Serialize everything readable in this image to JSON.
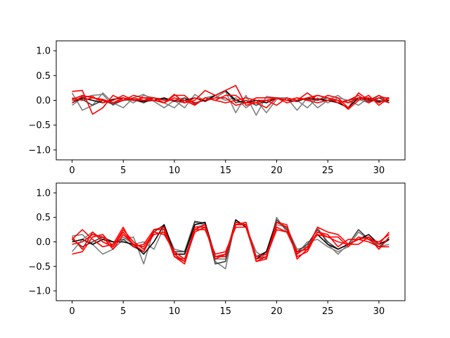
{
  "figure": {
    "background": "#ffffff"
  },
  "chart_data": [
    {
      "type": "line",
      "title": "",
      "xlabel": "",
      "ylabel": "",
      "xlim": [
        -1.55,
        32.55
      ],
      "ylim": [
        -1.2,
        1.2
      ],
      "x_ticks": [
        0,
        5,
        10,
        15,
        20,
        25,
        30
      ],
      "y_ticks": [
        -1.0,
        -0.5,
        0.0,
        0.5,
        1.0
      ],
      "x_tick_labels": [
        "0",
        "5",
        "10",
        "15",
        "20",
        "25",
        "30"
      ],
      "y_tick_labels": [
        "−1.0",
        "−0.5",
        "0.0",
        "0.5",
        "1.0"
      ],
      "grid": false,
      "legend": "none",
      "x": [
        0,
        1,
        2,
        3,
        4,
        5,
        6,
        7,
        8,
        9,
        10,
        11,
        12,
        13,
        14,
        15,
        16,
        17,
        18,
        19,
        20,
        21,
        22,
        23,
        24,
        25,
        26,
        27,
        28,
        29,
        30,
        31
      ],
      "series": [
        {
          "color": "#808080",
          "values": [
            0.15,
            -0.2,
            -0.1,
            0.15,
            -0.05,
            -0.15,
            0.05,
            0.12,
            -0.02,
            -0.15,
            0.0,
            -0.15,
            0.12,
            -0.02,
            0.05,
            0.18,
            -0.25,
            0.1,
            -0.3,
            0.08,
            0.05,
            0.05,
            -0.2,
            0.05,
            -0.15,
            0.0,
            0.1,
            -0.05,
            0.02,
            -0.05,
            0.1,
            0.02
          ]
        },
        {
          "color": "#808080",
          "values": [
            -0.1,
            0.05,
            0.1,
            0.12,
            -0.1,
            0.05,
            -0.05,
            0.1,
            0.05,
            -0.05,
            -0.15,
            0.05,
            -0.1,
            0.05,
            0.1,
            0.0,
            0.05,
            -0.15,
            0.0,
            -0.25,
            0.02,
            0.05,
            0.0,
            -0.15,
            0.05,
            -0.05,
            0.05,
            0.0,
            -0.1,
            0.05,
            0.0,
            -0.05
          ]
        },
        {
          "color": "#404040",
          "values": [
            0.0,
            0.02,
            -0.1,
            0.0,
            -0.08,
            0.0,
            0.02,
            -0.05,
            0.05,
            0.02,
            0.0,
            0.05,
            -0.05,
            0.0,
            0.1,
            0.2,
            -0.05,
            0.0,
            -0.1,
            0.0,
            0.05,
            0.0,
            0.05,
            0.02,
            0.0,
            0.05,
            -0.05,
            0.0,
            0.05,
            -0.02,
            0.05,
            -0.05
          ]
        },
        {
          "color": "#000000",
          "values": [
            -0.05,
            0.05,
            0.0,
            -0.05,
            0.02,
            0.05,
            0.0,
            -0.02,
            0.0,
            0.05,
            -0.02,
            0.0,
            0.05,
            -0.02,
            0.1,
            0.2,
            0.0,
            -0.05,
            0.0,
            -0.05,
            0.05,
            0.0,
            -0.02,
            0.05,
            0.02,
            0.0,
            -0.05,
            -0.15,
            0.05,
            0.02,
            -0.02,
            0.0
          ]
        },
        {
          "color": "#ff0000",
          "values": [
            0.18,
            0.2,
            -0.28,
            -0.15,
            0.1,
            0.0,
            0.05,
            0.0,
            0.05,
            -0.05,
            0.12,
            -0.05,
            0.0,
            0.2,
            0.1,
            0.2,
            0.3,
            -0.1,
            -0.05,
            -0.15,
            0.05,
            -0.05,
            0.0,
            0.15,
            0.0,
            0.1,
            0.05,
            -0.15,
            0.15,
            0.0,
            0.1,
            -0.05
          ]
        },
        {
          "color": "#ff0000",
          "values": [
            0.02,
            0.1,
            0.05,
            0.0,
            -0.05,
            0.05,
            0.0,
            0.05,
            0.0,
            -0.05,
            0.05,
            0.0,
            -0.1,
            0.05,
            0.0,
            -0.05,
            0.0,
            0.05,
            0.0,
            0.0,
            -0.1,
            0.05,
            0.0,
            0.05,
            0.1,
            0.05,
            -0.05,
            0.0,
            0.1,
            -0.05,
            0.05,
            0.05
          ]
        },
        {
          "color": "#ff0000",
          "values": [
            -0.05,
            0.08,
            0.08,
            -0.05,
            0.0,
            0.1,
            0.0,
            0.0,
            0.0,
            -0.05,
            0.1,
            0.1,
            -0.08,
            0.05,
            0.0,
            0.1,
            0.1,
            -0.05,
            -0.05,
            0.0,
            0.05,
            0.0,
            0.05,
            0.0,
            0.1,
            0.05,
            0.0,
            -0.18,
            0.0,
            0.1,
            -0.1,
            0.05
          ]
        },
        {
          "color": "#ff0000",
          "values": [
            0.05,
            0.0,
            0.05,
            0.02,
            -0.05,
            0.0,
            0.1,
            0.05,
            0.05,
            0.0,
            0.0,
            -0.05,
            0.05,
            0.0,
            0.05,
            0.05,
            -0.1,
            -0.05,
            0.05,
            0.05,
            0.05,
            0.0,
            0.05,
            0.0,
            -0.05,
            0.0,
            0.0,
            -0.05,
            0.05,
            0.05,
            -0.05,
            0.05
          ]
        }
      ]
    },
    {
      "type": "line",
      "title": "",
      "xlabel": "",
      "ylabel": "",
      "xlim": [
        -1.55,
        32.55
      ],
      "ylim": [
        -1.2,
        1.2
      ],
      "x_ticks": [
        0,
        5,
        10,
        15,
        20,
        25,
        30
      ],
      "y_ticks": [
        -1.0,
        -0.5,
        0.0,
        0.5,
        1.0
      ],
      "x_tick_labels": [
        "0",
        "5",
        "10",
        "15",
        "20",
        "25",
        "30"
      ],
      "y_tick_labels": [
        "−1.0",
        "−0.5",
        "0.0",
        "0.5",
        "1.0"
      ],
      "grid": false,
      "legend": "none",
      "x": [
        0,
        1,
        2,
        3,
        4,
        5,
        6,
        7,
        8,
        9,
        10,
        11,
        12,
        13,
        14,
        15,
        16,
        17,
        18,
        19,
        20,
        21,
        22,
        23,
        24,
        25,
        26,
        27,
        28,
        29,
        30,
        31
      ],
      "series": [
        {
          "color": "#808080",
          "values": [
            0.12,
            0.15,
            -0.05,
            -0.25,
            -0.15,
            0.05,
            0.1,
            -0.45,
            0.25,
            0.3,
            -0.15,
            -0.2,
            0.4,
            0.35,
            -0.4,
            -0.55,
            0.45,
            0.3,
            -0.2,
            -0.35,
            0.5,
            0.2,
            -0.25,
            0.0,
            0.05,
            -0.1,
            -0.2,
            -0.1,
            0.2,
            0.05,
            -0.05,
            0.05
          ]
        },
        {
          "color": "#808080",
          "values": [
            -0.2,
            0.05,
            0.2,
            0.05,
            -0.05,
            0.1,
            -0.05,
            0.0,
            -0.15,
            0.3,
            -0.3,
            -0.35,
            0.3,
            0.35,
            -0.35,
            -0.35,
            0.4,
            0.35,
            -0.35,
            -0.25,
            0.35,
            0.3,
            -0.15,
            -0.1,
            0.3,
            -0.05,
            -0.25,
            -0.05,
            0.05,
            0.1,
            -0.1,
            -0.05
          ]
        },
        {
          "color": "#404040",
          "values": [
            0.05,
            -0.1,
            0.0,
            0.1,
            0.0,
            0.05,
            -0.1,
            -0.2,
            0.2,
            0.35,
            -0.2,
            -0.2,
            0.42,
            0.38,
            -0.45,
            -0.4,
            0.4,
            0.35,
            -0.3,
            -0.2,
            0.45,
            0.25,
            -0.2,
            -0.05,
            0.25,
            0.0,
            -0.15,
            -0.05,
            0.25,
            0.05,
            -0.1,
            0.05
          ]
        },
        {
          "color": "#000000",
          "values": [
            0.0,
            0.05,
            -0.05,
            0.05,
            0.0,
            0.0,
            -0.05,
            -0.25,
            0.0,
            0.35,
            -0.25,
            -0.25,
            0.35,
            0.4,
            -0.3,
            -0.3,
            0.45,
            0.3,
            -0.35,
            -0.2,
            0.4,
            0.3,
            -0.25,
            -0.1,
            0.15,
            -0.05,
            -0.15,
            -0.05,
            0.05,
            0.15,
            -0.05,
            0.05
          ]
        },
        {
          "color": "#ff0000",
          "values": [
            0.05,
            0.25,
            0.05,
            -0.1,
            -0.05,
            0.3,
            -0.1,
            -0.05,
            0.25,
            0.25,
            -0.3,
            -0.45,
            0.25,
            0.35,
            -0.3,
            -0.25,
            0.4,
            0.35,
            -0.4,
            -0.35,
            0.4,
            0.35,
            -0.35,
            -0.15,
            0.3,
            0.2,
            0.15,
            -0.05,
            -0.05,
            0.1,
            -0.05,
            0.2
          ]
        },
        {
          "color": "#ff0000",
          "values": [
            -0.05,
            0.0,
            0.15,
            0.1,
            -0.15,
            0.15,
            -0.05,
            -0.2,
            0.25,
            0.3,
            -0.3,
            -0.4,
            0.3,
            0.3,
            -0.3,
            -0.3,
            0.35,
            0.4,
            -0.4,
            -0.3,
            0.4,
            0.3,
            -0.3,
            -0.2,
            0.2,
            0.15,
            -0.1,
            0.05,
            0.05,
            0.1,
            -0.15,
            0.1
          ]
        },
        {
          "color": "#ff0000",
          "values": [
            -0.25,
            -0.2,
            0.1,
            0.15,
            -0.1,
            0.25,
            0.0,
            -0.15,
            0.15,
            0.2,
            -0.25,
            -0.4,
            0.2,
            0.3,
            -0.35,
            -0.25,
            0.35,
            0.35,
            -0.3,
            -0.25,
            0.3,
            0.2,
            -0.2,
            -0.15,
            0.2,
            0.1,
            0.0,
            -0.05,
            0.05,
            0.0,
            -0.1,
            -0.1
          ]
        },
        {
          "color": "#ff0000",
          "values": [
            0.1,
            -0.15,
            0.2,
            0.0,
            -0.1,
            0.2,
            -0.05,
            -0.1,
            0.2,
            0.15,
            -0.2,
            -0.35,
            0.25,
            0.25,
            -0.25,
            -0.2,
            0.3,
            0.3,
            -0.35,
            -0.3,
            0.25,
            0.2,
            -0.25,
            -0.1,
            0.15,
            0.1,
            0.1,
            -0.1,
            0.1,
            0.05,
            0.0,
            0.15
          ]
        }
      ]
    }
  ]
}
